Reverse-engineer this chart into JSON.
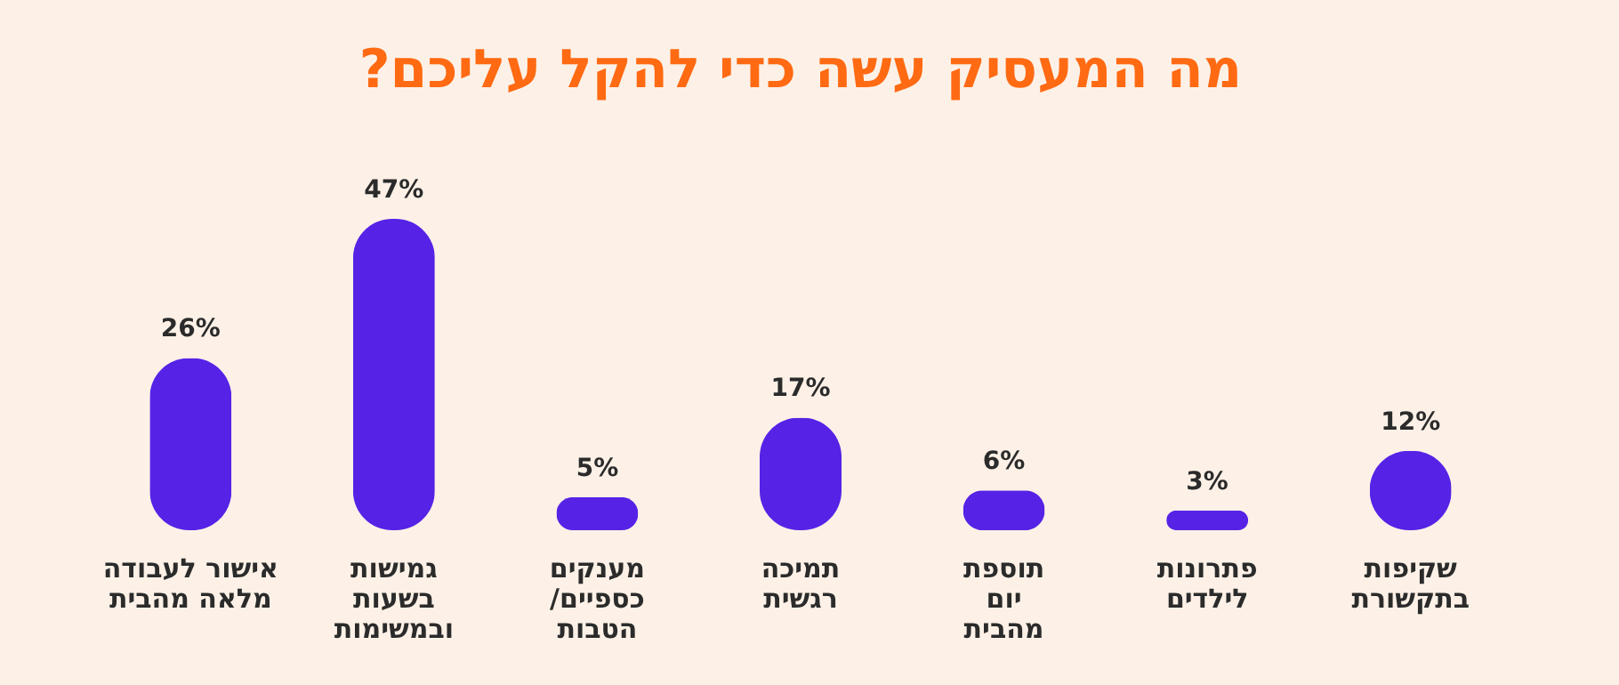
{
  "chart_data": {
    "type": "bar",
    "title": "מה המעסיק עשה כדי להקל עליכם?",
    "categories": [
      "אישור לעבודה\nמלאה מהבית",
      "גמישות\nבשעות\nובמשימות",
      "מענקים\nכספיים/\nהטבות",
      "תמיכה\nרגשית",
      "תוספת\nיום\nמהבית",
      "פתרונות\nלילדים",
      "שקיפות\nבתקשורת"
    ],
    "values": [
      26,
      47,
      5,
      17,
      6,
      3,
      12
    ],
    "value_labels": [
      "26%",
      "47%",
      "5%",
      "17%",
      "6%",
      "3%",
      "12%"
    ],
    "color": "#5622e6"
  }
}
